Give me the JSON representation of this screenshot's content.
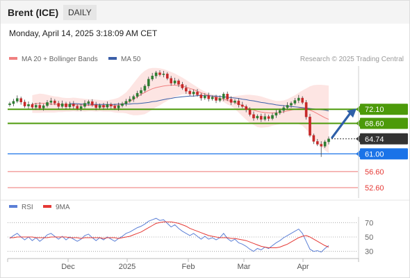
{
  "instrument": "Brent (ICE)",
  "period": "DAILY",
  "datetime": "Monday, April 14, 2025 3:18:09 AM CET",
  "credit": "Research © 2025 Trading Central",
  "colors": {
    "candle_up": "#2e7d32",
    "candle_down": "#c62828",
    "bollinger_fill": "#fde0de",
    "ma20": "#f08080",
    "ma50": "#3b5fa8",
    "resistance": "#4c9a0a",
    "pivot": "#1a73e8",
    "support": "#e53935",
    "last_price": "#333333",
    "arrow": "#2e5fa8",
    "rsi": "#5b7fd6",
    "rsi_ma": "#e53935"
  },
  "chart_data": [
    {
      "type": "candlestick",
      "legend": [
        {
          "name": "MA 20 + Bollinger Bands",
          "color": "#f08080"
        },
        {
          "name": "MA 50",
          "color": "#3b5fa8"
        }
      ],
      "x_ticks": [
        "Dec",
        "2025",
        "Feb",
        "Mar",
        "Apr"
      ],
      "ylim": [
        50,
        82
      ],
      "levels": [
        {
          "label": "72.10",
          "value": 72.1,
          "kind": "resistance"
        },
        {
          "label": "68.60",
          "value": 68.6,
          "kind": "resistance"
        },
        {
          "label": "64.74",
          "value": 64.74,
          "kind": "last"
        },
        {
          "label": "61.00",
          "value": 61.0,
          "kind": "pivot"
        },
        {
          "label": "56.60",
          "value": 56.6,
          "kind": "support"
        },
        {
          "label": "52.60",
          "value": 52.6,
          "kind": "support"
        }
      ],
      "close": [
        73.5,
        74.1,
        74.8,
        73.9,
        72.9,
        73.3,
        72.6,
        73.1,
        72.4,
        73.0,
        73.8,
        74.2,
        73.6,
        72.8,
        73.5,
        72.7,
        73.4,
        72.9,
        72.3,
        72.8,
        73.6,
        74.0,
        73.2,
        72.5,
        73.1,
        72.6,
        73.3,
        72.9,
        72.4,
        73.0,
        73.5,
        74.1,
        74.6,
        75.3,
        76.1,
        76.8,
        77.9,
        79.6,
        80.4,
        81.2,
        80.7,
        80.9,
        79.8,
        78.6,
        79.2,
        78.3,
        77.4,
        76.6,
        75.9,
        76.4,
        75.7,
        74.9,
        75.5,
        74.7,
        75.1,
        74.3,
        74.8,
        75.9,
        74.6,
        73.8,
        74.2,
        73.2,
        72.8,
        72.0,
        70.8,
        69.9,
        70.4,
        69.6,
        70.3,
        69.8,
        70.6,
        71.2,
        71.8,
        72.5,
        73.1,
        73.6,
        74.3,
        74.9,
        73.8,
        70.2,
        65.6,
        64.1,
        63.4,
        62.9,
        64.0,
        64.74
      ],
      "ma20": [
        73.4,
        73.5,
        73.6,
        73.6,
        73.5,
        73.4,
        73.3,
        73.3,
        73.2,
        73.2,
        73.2,
        73.3,
        73.2,
        73.2,
        73.1,
        73.1,
        73.1,
        73.0,
        73.0,
        72.9,
        72.9,
        73.0,
        73.0,
        73.1,
        73.4,
        73.7,
        74.1,
        74.6,
        75.2,
        75.8,
        76.3,
        76.8,
        77.2,
        77.5,
        77.7,
        77.9,
        78.0,
        78.1,
        78.1,
        78.0,
        77.9,
        77.6,
        77.3,
        77.0,
        76.6,
        76.2,
        75.9,
        75.6,
        75.3,
        75.1,
        74.8,
        74.6,
        74.3,
        74.1,
        73.8,
        73.4,
        73.0,
        72.6,
        72.2,
        71.9,
        71.6,
        71.4,
        71.3,
        71.2,
        71.2,
        71.2,
        71.3,
        71.5,
        71.7,
        71.9,
        72.1,
        72.3,
        72.4,
        72.2,
        71.9,
        71.5,
        71.0,
        70.5,
        70.0,
        69.6
      ],
      "bb_upper": [
        75.6,
        75.8,
        76.0,
        75.9,
        75.7,
        75.5,
        75.3,
        75.2,
        75.0,
        74.9,
        74.9,
        75.0,
        74.9,
        74.8,
        74.7,
        74.6,
        74.6,
        74.5,
        74.4,
        74.3,
        74.3,
        74.5,
        74.7,
        75.0,
        75.6,
        76.3,
        77.4,
        78.6,
        79.8,
        80.9,
        81.7,
        82.2,
        82.4,
        82.4,
        82.3,
        82.1,
        81.8,
        81.4,
        81.0,
        80.5,
        80.0,
        79.4,
        78.8,
        78.2,
        77.6,
        77.0,
        76.5,
        76.1,
        75.8,
        75.6,
        75.4,
        75.3,
        75.3,
        75.3,
        75.4,
        75.5,
        75.6,
        75.7,
        75.7,
        75.6,
        75.5,
        75.3,
        75.0,
        74.7,
        74.4,
        74.2,
        74.2,
        74.3,
        74.6,
        75.1,
        75.6,
        76.2,
        76.8,
        77.3,
        77.8,
        78.1,
        78.2,
        78.2,
        78.1,
        78.0
      ],
      "bb_lower": [
        71.2,
        71.2,
        71.2,
        71.3,
        71.3,
        71.3,
        71.3,
        71.4,
        71.4,
        71.5,
        71.5,
        71.6,
        71.5,
        71.6,
        71.5,
        71.6,
        71.6,
        71.5,
        71.6,
        71.5,
        71.5,
        71.5,
        71.3,
        71.2,
        71.2,
        71.1,
        70.8,
        70.6,
        70.6,
        70.7,
        70.9,
        71.4,
        72.0,
        72.6,
        73.1,
        73.7,
        74.2,
        74.8,
        75.2,
        75.5,
        75.8,
        75.8,
        75.8,
        75.8,
        75.6,
        75.4,
        75.3,
        75.1,
        74.8,
        74.6,
        74.2,
        73.9,
        73.3,
        72.9,
        72.2,
        71.3,
        70.4,
        69.5,
        68.7,
        68.2,
        67.7,
        67.5,
        67.6,
        67.7,
        68.0,
        68.2,
        68.4,
        68.7,
        68.8,
        68.7,
        68.6,
        68.4,
        68.0,
        67.1,
        66.0,
        64.9,
        63.8,
        62.8,
        61.9,
        61.2
      ],
      "ma50": [
        73.5,
        73.5,
        73.5,
        73.4,
        73.4,
        73.4,
        73.3,
        73.3,
        73.3,
        73.3,
        73.3,
        73.3,
        73.3,
        73.4,
        73.4,
        73.4,
        73.4,
        73.5,
        73.5,
        73.6,
        73.7,
        73.8,
        74.0,
        74.1,
        74.3,
        74.5,
        74.7,
        74.8,
        75.0,
        75.1,
        75.2,
        75.3,
        75.4,
        75.4,
        75.5,
        75.5,
        75.5,
        75.5,
        75.4,
        75.4,
        75.3,
        75.2,
        75.1,
        75.0,
        74.9,
        74.8,
        74.6,
        74.5,
        74.3,
        74.2,
        74.0,
        73.8,
        73.7,
        73.5,
        73.4,
        73.2,
        73.1,
        73.0,
        72.9,
        72.8,
        72.7,
        72.6,
        72.5,
        72.4,
        72.3,
        72.2,
        72.1,
        72.0,
        71.9,
        71.7
      ]
    },
    {
      "type": "line",
      "legend": [
        {
          "name": "RSI",
          "color": "#5b7fd6"
        },
        {
          "name": "9MA",
          "color": "#e53935"
        }
      ],
      "y_ticks": [
        70,
        50,
        30
      ],
      "ylim": [
        20,
        80
      ],
      "rsi": [
        48,
        52,
        55,
        50,
        46,
        50,
        45,
        49,
        44,
        48,
        53,
        55,
        51,
        47,
        51,
        46,
        50,
        47,
        44,
        47,
        52,
        54,
        49,
        45,
        49,
        46,
        50,
        47,
        44,
        48,
        51,
        55,
        57,
        60,
        63,
        65,
        68,
        72,
        74,
        76,
        73,
        74,
        69,
        64,
        67,
        62,
        58,
        55,
        52,
        55,
        51,
        47,
        51,
        47,
        49,
        46,
        49,
        55,
        48,
        44,
        47,
        42,
        40,
        37,
        33,
        30,
        34,
        32,
        36,
        34,
        38,
        42,
        45,
        49,
        52,
        55,
        58,
        61,
        55,
        44,
        33,
        30,
        31,
        29,
        34,
        38
      ],
      "rsi_ma": [
        49,
        49,
        50,
        50,
        50,
        50,
        50,
        49,
        49,
        49,
        49,
        50,
        50,
        50,
        50,
        50,
        49,
        49,
        49,
        48,
        49,
        49,
        49,
        49,
        49,
        48,
        49,
        49,
        49,
        48,
        49,
        50,
        51,
        53,
        55,
        57,
        60,
        63,
        66,
        69,
        70,
        71,
        71,
        71,
        70,
        69,
        67,
        65,
        62,
        60,
        58,
        56,
        54,
        52,
        51,
        50,
        49,
        49,
        49,
        48,
        48,
        47,
        46,
        45,
        43,
        41,
        39,
        37,
        36,
        35,
        35,
        35,
        36,
        38,
        40,
        43,
        46,
        49,
        51,
        52,
        50,
        47,
        44,
        41,
        38,
        36
      ]
    }
  ]
}
